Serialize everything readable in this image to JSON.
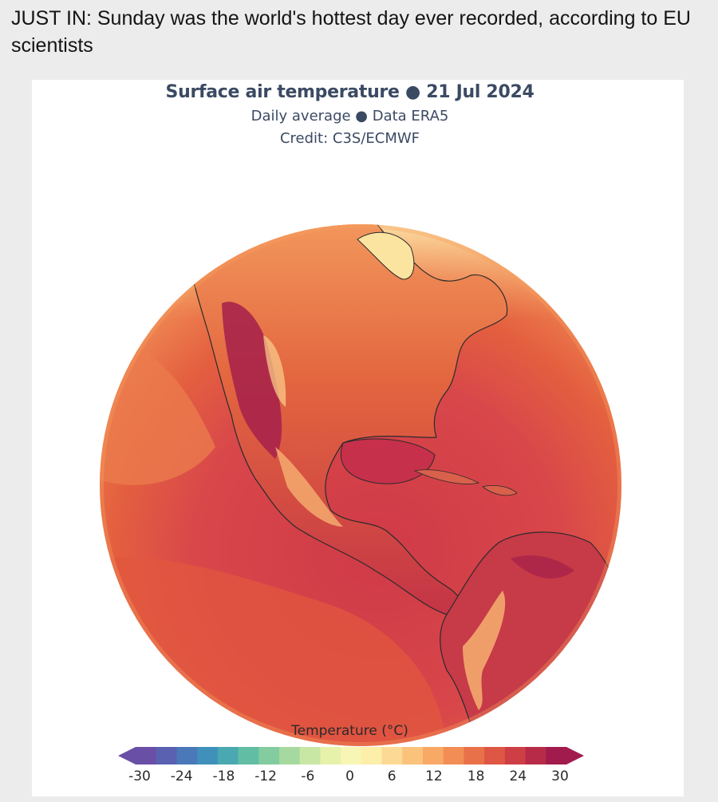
{
  "post": {
    "headline": "JUST IN: Sunday was the world's hottest day ever recorded, according to EU scientists"
  },
  "figure": {
    "title": "Surface air temperature ● 21 Jul 2024",
    "subtitle": "Daily average ● Data ERA5",
    "credit": "Credit: C3S/ECMWF"
  },
  "legend": {
    "title": "Temperature (°C)",
    "ticks": [
      "-30",
      "-24",
      "-18",
      "-12",
      "-6",
      "0",
      "6",
      "12",
      "18",
      "24",
      "30"
    ],
    "palette": [
      "#6a4fa6",
      "#5a61b0",
      "#4a78b8",
      "#3f90bb",
      "#4aa8b0",
      "#62bda5",
      "#82cc9f",
      "#a6d99f",
      "#c9e7a4",
      "#e6f2aa",
      "#f7f6b4",
      "#fdeea9",
      "#fcd994",
      "#fbc27c",
      "#f8a966",
      "#f28e55",
      "#e9714a",
      "#de5644",
      "#cd3f45",
      "#b72b49",
      "#a11c4d"
    ]
  },
  "map": {
    "region": "North America",
    "colors": {
      "ocean_warm": "#e2553f",
      "ocean_hot": "#cf3a47",
      "ocean_mid": "#ea6e4a",
      "land_hot": "#a8234a",
      "land_warm": "#f08a55",
      "arctic": "#fbe3a0",
      "greenland": "#a6d99f"
    }
  }
}
